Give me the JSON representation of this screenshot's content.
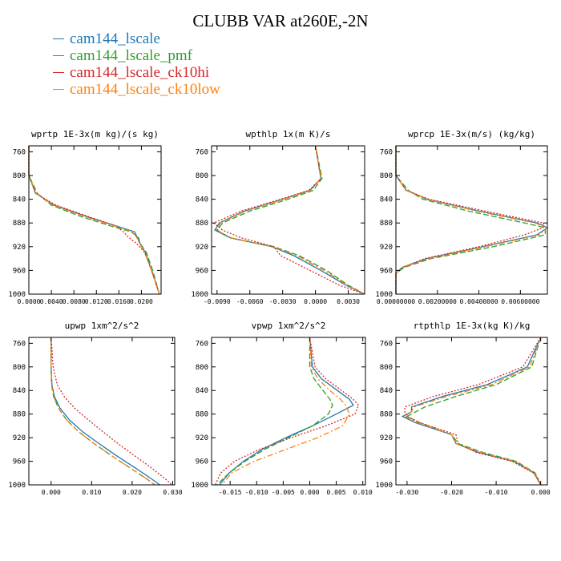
{
  "title": "CLUBB VAR at260E,-2N",
  "colors": {
    "cam144_lscale": "#1f77b4",
    "cam144_lscale_pmf": "#2ca02c",
    "cam144_lscale_ck10hi": "#d62728",
    "cam144_lscale_ck10low": "#ff7f0e"
  },
  "legend": [
    {
      "label": "cam144_lscale",
      "color": "#1f77b4"
    },
    {
      "label": "cam144_lscale_pmf",
      "color": "#2ca02c"
    },
    {
      "label": "cam144_lscale_ck10hi",
      "color": "#d62728"
    },
    {
      "label": "cam144_lscale_ck10low",
      "color": "#ff7f0e"
    }
  ],
  "chart_data": [
    {
      "type": "line",
      "title": "wprtp  1E-3x(m kg)/(s kg)",
      "xlim": [
        0.0,
        0.0235
      ],
      "ylim": [
        1000,
        750
      ],
      "xticks": [
        0.0,
        0.004,
        0.008,
        0.012,
        0.016,
        0.02
      ],
      "xtick_labels": [
        "0.0000",
        "0.0040",
        "0.0080",
        "0.0120",
        "0.0160",
        "0.0200"
      ],
      "yticks": [
        760,
        800,
        840,
        880,
        920,
        960,
        1000
      ],
      "y": [
        750,
        800,
        830,
        850,
        870,
        885,
        895,
        905,
        915,
        930,
        960,
        1000
      ],
      "series": [
        {
          "name": "cam144_lscale",
          "values": [
            0.0,
            0.0,
            0.0012,
            0.0045,
            0.0105,
            0.0155,
            0.0188,
            0.0193,
            0.0198,
            0.0207,
            0.0218,
            0.0232
          ]
        },
        {
          "name": "cam144_lscale_pmf",
          "values": [
            0.0,
            0.0,
            0.0015,
            0.004,
            0.0095,
            0.0145,
            0.0182,
            0.0195,
            0.0198,
            0.0209,
            0.022,
            0.0232
          ]
        },
        {
          "name": "cam144_lscale_ck10hi",
          "values": [
            0.0,
            0.0,
            0.0012,
            0.0048,
            0.0108,
            0.0155,
            0.0168,
            0.0178,
            0.0192,
            0.0206,
            0.0218,
            0.0232
          ]
        },
        {
          "name": "cam144_lscale_ck10low",
          "values": [
            0.0,
            0.0,
            0.0013,
            0.0043,
            0.0102,
            0.0152,
            0.0185,
            0.0192,
            0.0197,
            0.0206,
            0.0218,
            0.0232
          ]
        }
      ]
    },
    {
      "type": "line",
      "title": "wpthlp  1x(m K)/s",
      "xlim": [
        -0.0095,
        0.0045
      ],
      "ylim": [
        1000,
        750
      ],
      "xticks": [
        -0.009,
        -0.006,
        -0.003,
        0.0,
        0.003
      ],
      "xtick_labels": [
        "-0.0090",
        "-0.0060",
        "-0.0030",
        "0.0000",
        "0.0030"
      ],
      "yticks": [
        760,
        800,
        840,
        880,
        920,
        960,
        1000
      ],
      "y": [
        750,
        805,
        825,
        840,
        860,
        880,
        892,
        905,
        920,
        935,
        960,
        985,
        1000
      ],
      "series": [
        {
          "name": "cam144_lscale",
          "values": [
            0.0,
            0.0005,
            -0.0005,
            -0.003,
            -0.0065,
            -0.0088,
            -0.0092,
            -0.0078,
            -0.004,
            -0.002,
            0.0005,
            0.0028,
            0.0045
          ]
        },
        {
          "name": "cam144_lscale_pmf",
          "values": [
            0.0,
            0.0006,
            -0.0002,
            -0.0025,
            -0.006,
            -0.0085,
            -0.009,
            -0.0078,
            -0.0038,
            -0.0015,
            0.001,
            0.003,
            0.0045
          ]
        },
        {
          "name": "cam144_lscale_ck10hi",
          "values": [
            0.0,
            0.0005,
            -0.0006,
            -0.0032,
            -0.0068,
            -0.0093,
            -0.0085,
            -0.0068,
            -0.0038,
            -0.0032,
            -0.0005,
            0.0022,
            0.0045
          ]
        },
        {
          "name": "cam144_lscale_ck10low",
          "values": [
            0.0,
            0.0005,
            -0.0004,
            -0.0029,
            -0.0064,
            -0.0087,
            -0.0091,
            -0.0077,
            -0.004,
            -0.0017,
            0.0008,
            0.0029,
            0.0045
          ]
        }
      ]
    },
    {
      "type": "line",
      "title": "wprcp  1E-3x(m/s) (kg/kg)",
      "xlim": [
        0.0,
        0.0073
      ],
      "ylim": [
        1000,
        750
      ],
      "xticks": [
        0.0,
        0.002,
        0.004,
        0.006
      ],
      "xtick_labels": [
        "0.00000000",
        "0.00200000",
        "0.00400000",
        "0.00600000"
      ],
      "yticks": [
        760,
        800,
        840,
        880,
        920,
        960,
        1000
      ],
      "y": [
        750,
        800,
        825,
        840,
        860,
        880,
        888,
        900,
        920,
        940,
        955,
        965,
        1000
      ],
      "series": [
        {
          "name": "cam144_lscale",
          "values": [
            0.0,
            0.0,
            0.0005,
            0.0015,
            0.004,
            0.0068,
            0.0073,
            0.0068,
            0.0042,
            0.0015,
            0.0003,
            0.0,
            0.0
          ]
        },
        {
          "name": "cam144_lscale_pmf",
          "values": [
            0.0,
            0.0,
            0.0006,
            0.0013,
            0.0035,
            0.0062,
            0.0072,
            0.0072,
            0.0047,
            0.0017,
            0.0004,
            0.0,
            0.0
          ]
        },
        {
          "name": "cam144_lscale_ck10hi",
          "values": [
            0.0,
            0.0,
            0.0005,
            0.0016,
            0.0043,
            0.0071,
            0.0071,
            0.0062,
            0.004,
            0.0014,
            0.0003,
            0.0,
            0.0
          ]
        },
        {
          "name": "cam144_lscale_ck10low",
          "values": [
            0.0,
            0.0,
            0.0005,
            0.0015,
            0.0039,
            0.0067,
            0.0073,
            0.0069,
            0.0043,
            0.0016,
            0.0003,
            0.0,
            0.0
          ]
        }
      ]
    },
    {
      "type": "line",
      "title": "upwp  1xm^2/s^2",
      "xlim": [
        -0.0055,
        0.0305
      ],
      "ylim": [
        1000,
        750
      ],
      "xticks": [
        0.0,
        0.01,
        0.02,
        0.03
      ],
      "xtick_labels": [
        "0.000",
        "0.010",
        "0.020",
        "0.030"
      ],
      "yticks": [
        760,
        800,
        840,
        880,
        920,
        960,
        1000
      ],
      "y": [
        750,
        800,
        830,
        850,
        870,
        890,
        910,
        930,
        950,
        970,
        990,
        1000
      ],
      "series": [
        {
          "name": "cam144_lscale",
          "values": [
            0.0,
            0.0,
            0.0002,
            0.0008,
            0.0022,
            0.0045,
            0.0078,
            0.0118,
            0.016,
            0.0205,
            0.0248,
            0.0268
          ]
        },
        {
          "name": "cam144_lscale_pmf",
          "values": [
            0.0,
            0.0,
            0.0001,
            0.0006,
            0.0018,
            0.0038,
            0.0068,
            0.0106,
            0.0148,
            0.0192,
            0.0236,
            0.0256
          ]
        },
        {
          "name": "cam144_lscale_ck10hi",
          "values": [
            0.0,
            0.0005,
            0.0015,
            0.0032,
            0.0058,
            0.0092,
            0.0128,
            0.0165,
            0.0205,
            0.0245,
            0.0282,
            0.0298
          ]
        },
        {
          "name": "cam144_lscale_ck10low",
          "values": [
            0.0,
            0.0,
            0.0001,
            0.0006,
            0.0018,
            0.0038,
            0.0068,
            0.0106,
            0.0148,
            0.0192,
            0.0236,
            0.0256
          ]
        }
      ]
    },
    {
      "type": "line",
      "title": "vpwp  1xm^2/s^2",
      "xlim": [
        -0.0185,
        0.0105
      ],
      "ylim": [
        1000,
        750
      ],
      "xticks": [
        -0.015,
        -0.01,
        -0.005,
        0.0,
        0.005,
        0.01
      ],
      "xtick_labels": [
        "-0.015",
        "-0.010",
        "-0.005",
        "0.000",
        "0.005",
        "0.010"
      ],
      "yticks": [
        760,
        800,
        840,
        880,
        920,
        960,
        1000
      ],
      "y": [
        750,
        800,
        820,
        840,
        855,
        865,
        880,
        900,
        920,
        940,
        960,
        980,
        1000
      ],
      "series": [
        {
          "name": "cam144_lscale",
          "values": [
            0.0,
            0.0005,
            0.0022,
            0.0052,
            0.0075,
            0.0082,
            0.005,
            0.0005,
            -0.0045,
            -0.009,
            -0.0125,
            -0.0152,
            -0.017
          ]
        },
        {
          "name": "cam144_lscale_pmf",
          "values": [
            0.0,
            0.0,
            0.0008,
            0.0025,
            0.0038,
            0.0043,
            0.0035,
            0.0005,
            -0.004,
            -0.0085,
            -0.0122,
            -0.0152,
            -0.0175
          ]
        },
        {
          "name": "cam144_lscale_ck10hi",
          "values": [
            0.0,
            0.001,
            0.003,
            0.006,
            0.0082,
            0.0092,
            0.0085,
            0.003,
            -0.0035,
            -0.0095,
            -0.0142,
            -0.0168,
            -0.0178
          ]
        },
        {
          "name": "cam144_lscale_ck10low",
          "values": [
            0.0,
            0.0003,
            0.0015,
            0.0038,
            0.0058,
            0.0068,
            0.0075,
            0.0062,
            0.0015,
            -0.0045,
            -0.0105,
            -0.0148,
            -0.0165
          ]
        }
      ]
    },
    {
      "type": "line",
      "title": "rtpthlp  1E-3x(kg K)/kg",
      "xlim": [
        -0.0325,
        0.0015
      ],
      "ylim": [
        1000,
        750
      ],
      "xticks": [
        -0.03,
        -0.02,
        -0.01,
        0.0
      ],
      "xtick_labels": [
        "-0.030",
        "-0.020",
        "-0.010",
        "0.000"
      ],
      "yticks": [
        760,
        800,
        840,
        880,
        920,
        960,
        1000
      ],
      "y": [
        750,
        800,
        830,
        850,
        868,
        876,
        884,
        895,
        915,
        930,
        945,
        960,
        980,
        1000
      ],
      "series": [
        {
          "name": "cam144_lscale",
          "values": [
            0.0,
            -0.003,
            -0.012,
            -0.022,
            -0.029,
            -0.029,
            -0.031,
            -0.028,
            -0.02,
            -0.019,
            -0.014,
            -0.006,
            -0.0015,
            0.0
          ]
        },
        {
          "name": "cam144_lscale_pmf",
          "values": [
            0.0,
            -0.002,
            -0.01,
            -0.019,
            -0.026,
            -0.028,
            -0.03,
            -0.027,
            -0.02,
            -0.0185,
            -0.013,
            -0.0055,
            -0.0012,
            0.0
          ]
        },
        {
          "name": "cam144_lscale_ck10hi",
          "values": [
            0.0,
            -0.004,
            -0.014,
            -0.024,
            -0.0305,
            -0.0305,
            -0.03,
            -0.027,
            -0.019,
            -0.0185,
            -0.0145,
            -0.0065,
            -0.0015,
            0.0
          ]
        },
        {
          "name": "cam144_lscale_ck10low",
          "values": [
            0.0,
            -0.0025,
            -0.011,
            -0.021,
            -0.0285,
            -0.029,
            -0.0305,
            -0.0275,
            -0.02,
            -0.019,
            -0.0135,
            -0.0058,
            -0.0013,
            0.0
          ]
        }
      ]
    }
  ]
}
